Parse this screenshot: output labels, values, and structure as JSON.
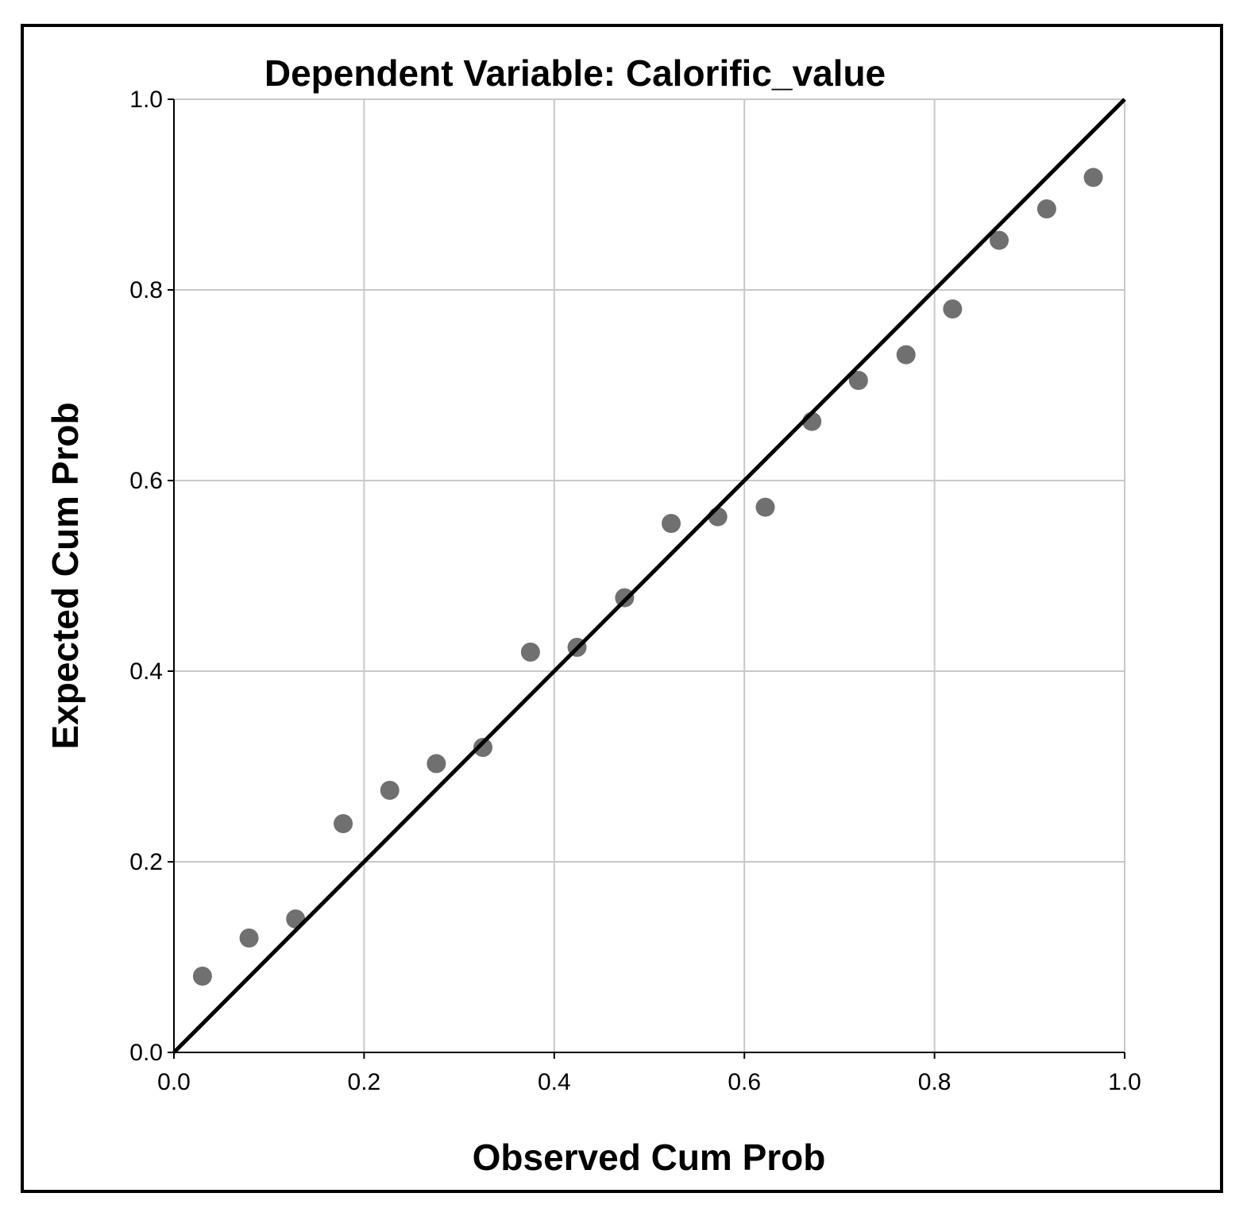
{
  "chart_data": {
    "type": "scatter",
    "title": "Dependent Variable: Calorific_value",
    "xlabel": "Observed Cum Prob",
    "ylabel": "Expected Cum Prob",
    "xlim": [
      0,
      1
    ],
    "ylim": [
      0,
      1
    ],
    "xticks": [
      "0.0",
      "0.2",
      "0.4",
      "0.6",
      "0.8",
      "1.0"
    ],
    "yticks": [
      "0.0",
      "0.2",
      "0.4",
      "0.6",
      "0.8",
      "1.0"
    ],
    "grid": true,
    "legend": "none",
    "reference_line": {
      "from": [
        0,
        0
      ],
      "to": [
        1,
        1
      ],
      "label": ""
    },
    "series": [
      {
        "name": "Observed vs Expected",
        "color": "#707070",
        "x": [
          0.03,
          0.079,
          0.128,
          0.178,
          0.227,
          0.276,
          0.325,
          0.375,
          0.424,
          0.474,
          0.523,
          0.572,
          0.622,
          0.671,
          0.72,
          0.77,
          0.819,
          0.868,
          0.918,
          0.967
        ],
        "y": [
          0.08,
          0.12,
          0.14,
          0.24,
          0.275,
          0.303,
          0.32,
          0.42,
          0.425,
          0.477,
          0.555,
          0.562,
          0.572,
          0.662,
          0.705,
          0.732,
          0.78,
          0.852,
          0.885,
          0.918
        ]
      }
    ]
  },
  "colors": {
    "grid": "#c8c8c8",
    "axis": "#000000",
    "points": "#707070",
    "reference_line": "#000000"
  }
}
